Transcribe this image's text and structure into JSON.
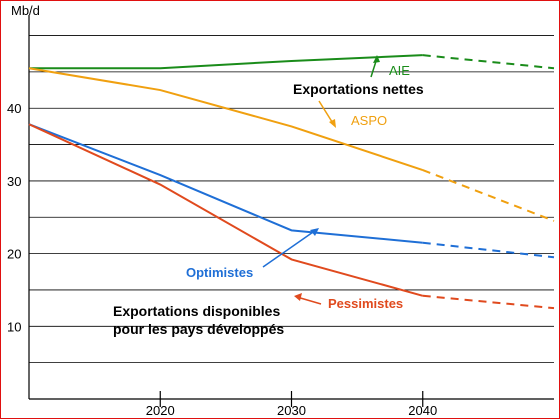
{
  "chart_data": {
    "type": "line",
    "ylabel": "Mb/d",
    "xlim": [
      2010,
      2050
    ],
    "ylim": [
      0,
      52
    ],
    "x_ticks": [
      2020,
      2030,
      2040
    ],
    "x_tick_labels": [
      "2020",
      "2030",
      "2040"
    ],
    "y_ticks": [
      10,
      20,
      30,
      40
    ],
    "y_tick_labels": [
      "10",
      "20",
      "30",
      "40"
    ],
    "grid": "horizontal",
    "series": [
      {
        "name": "AIE",
        "color": "#1a8c1a",
        "points": [
          [
            2010,
            45.5
          ],
          [
            2020,
            45.5
          ],
          [
            2030,
            46.5
          ],
          [
            2040,
            47.3
          ]
        ],
        "projection": [
          [
            2040,
            47.3
          ],
          [
            2050,
            45.5
          ]
        ]
      },
      {
        "name": "ASPO",
        "color": "#f0a010",
        "points": [
          [
            2010,
            45.5
          ],
          [
            2020,
            42.5
          ],
          [
            2030,
            37.5
          ],
          [
            2040,
            31.5
          ]
        ],
        "projection": [
          [
            2040,
            31.5
          ],
          [
            2050,
            24.5
          ]
        ]
      },
      {
        "name": "Optimistes",
        "color": "#1f6fd6",
        "points": [
          [
            2010,
            37.8
          ],
          [
            2020,
            30.8
          ],
          [
            2030,
            23.2
          ],
          [
            2040,
            21.5
          ]
        ],
        "projection": [
          [
            2040,
            21.5
          ],
          [
            2050,
            19.5
          ]
        ]
      },
      {
        "name": "Pessimistes",
        "color": "#e04a1e",
        "points": [
          [
            2010,
            37.8
          ],
          [
            2020,
            29.5
          ],
          [
            2030,
            19.2
          ],
          [
            2040,
            14.2
          ]
        ],
        "projection": [
          [
            2040,
            14.2
          ],
          [
            2050,
            12.5
          ]
        ]
      }
    ],
    "annotations": {
      "exports_nettes": "Exportations nettes",
      "exports_disponibles_line1": "Exportations disponibles",
      "exports_disponibles_line2": "pour les pays développés"
    }
  }
}
